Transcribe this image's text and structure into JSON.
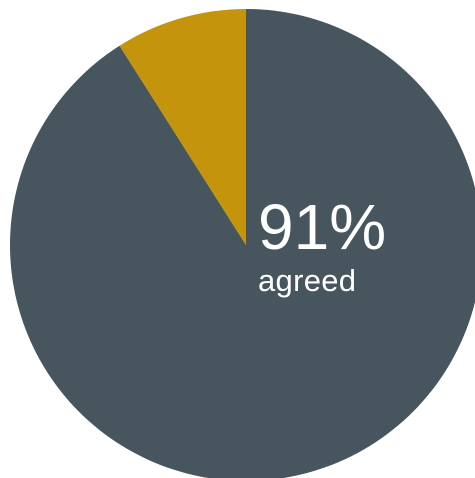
{
  "chart_data": {
    "type": "pie",
    "slices": [
      {
        "label": "",
        "value": 91,
        "color": "#47555f"
      },
      {
        "label": "",
        "value": 9,
        "color": "#c4950c"
      }
    ],
    "center_value_text": "91%",
    "center_caption_text": "agreed"
  }
}
